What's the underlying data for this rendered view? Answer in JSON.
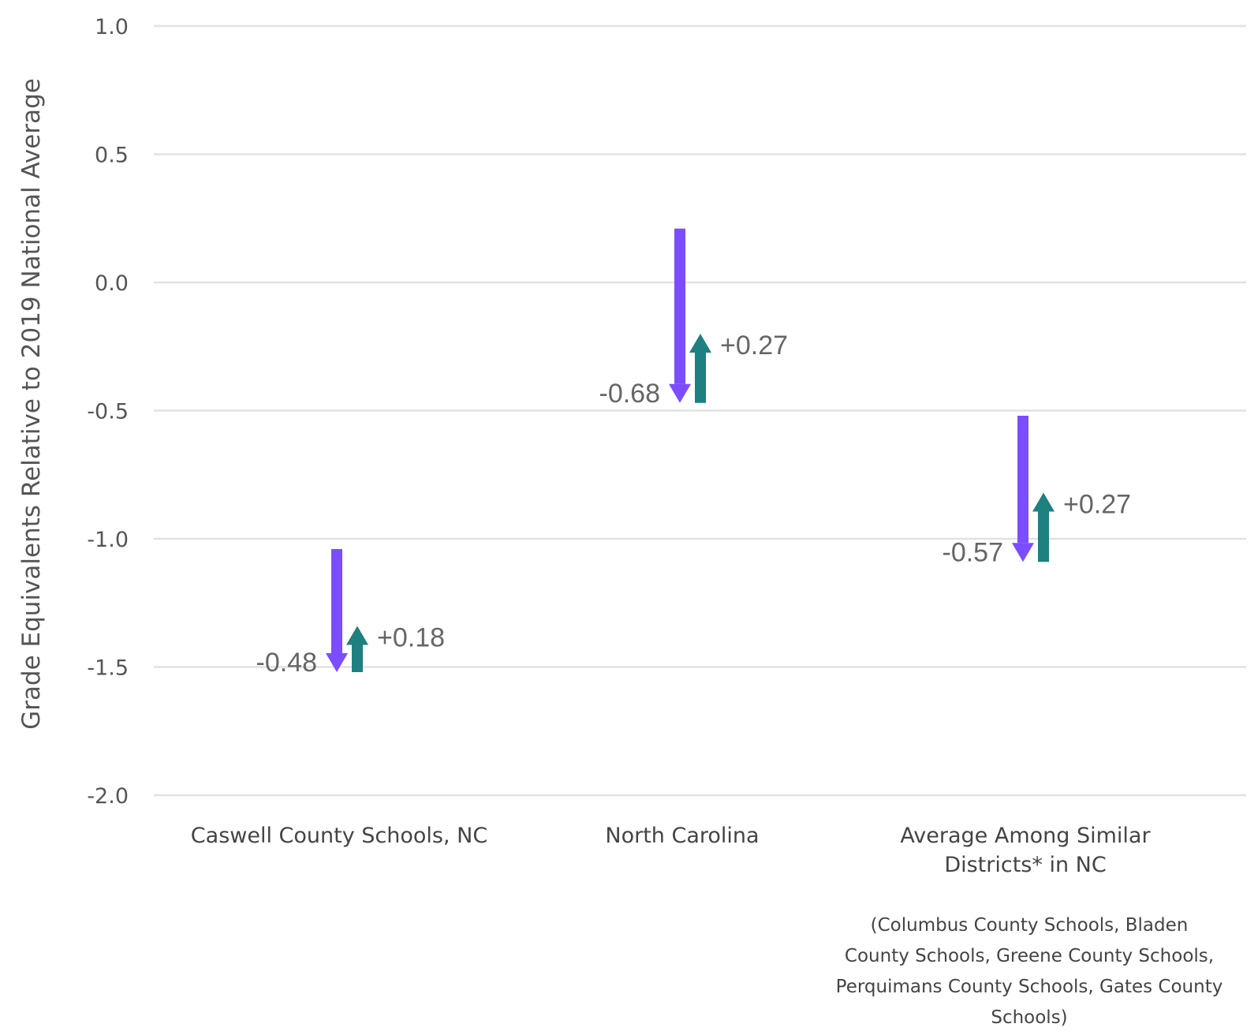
{
  "chart_data": {
    "type": "arrow",
    "ylabel": "Grade Equivalents Relative to 2019 National Average",
    "ylim": [
      -2.0,
      1.0
    ],
    "yticks": [
      1.0,
      0.5,
      0.0,
      -0.5,
      -1.0,
      -1.5,
      -2.0
    ],
    "ytick_labels": [
      "1.0",
      "0.5",
      "0.0",
      "-0.5",
      "-1.0",
      "-1.5",
      "-2.0"
    ],
    "grid": true,
    "colors": {
      "decline": "#7c4dff",
      "recovery": "#1e8080"
    },
    "categories": [
      {
        "label_lines": [
          "Caswell County Schools, NC"
        ],
        "note_lines": [],
        "decline": {
          "start": -1.04,
          "end": -1.52,
          "label": "-0.48"
        },
        "recovery": {
          "start": -1.52,
          "end": -1.34,
          "label": "+0.18"
        }
      },
      {
        "label_lines": [
          "North Carolina"
        ],
        "note_lines": [],
        "decline": {
          "start": 0.21,
          "end": -0.47,
          "label": "-0.68"
        },
        "recovery": {
          "start": -0.47,
          "end": -0.2,
          "label": "+0.27"
        }
      },
      {
        "label_lines": [
          "Average Among Similar",
          "Districts* in NC"
        ],
        "note_lines": [
          "(Columbus County Schools, Bladen",
          "County Schools, Greene County Schools,",
          "Perquimans County Schools, Gates County",
          "Schools)"
        ],
        "decline": {
          "start": -0.52,
          "end": -1.09,
          "label": "-0.57"
        },
        "recovery": {
          "start": -1.09,
          "end": -0.82,
          "label": "+0.27"
        }
      }
    ]
  }
}
